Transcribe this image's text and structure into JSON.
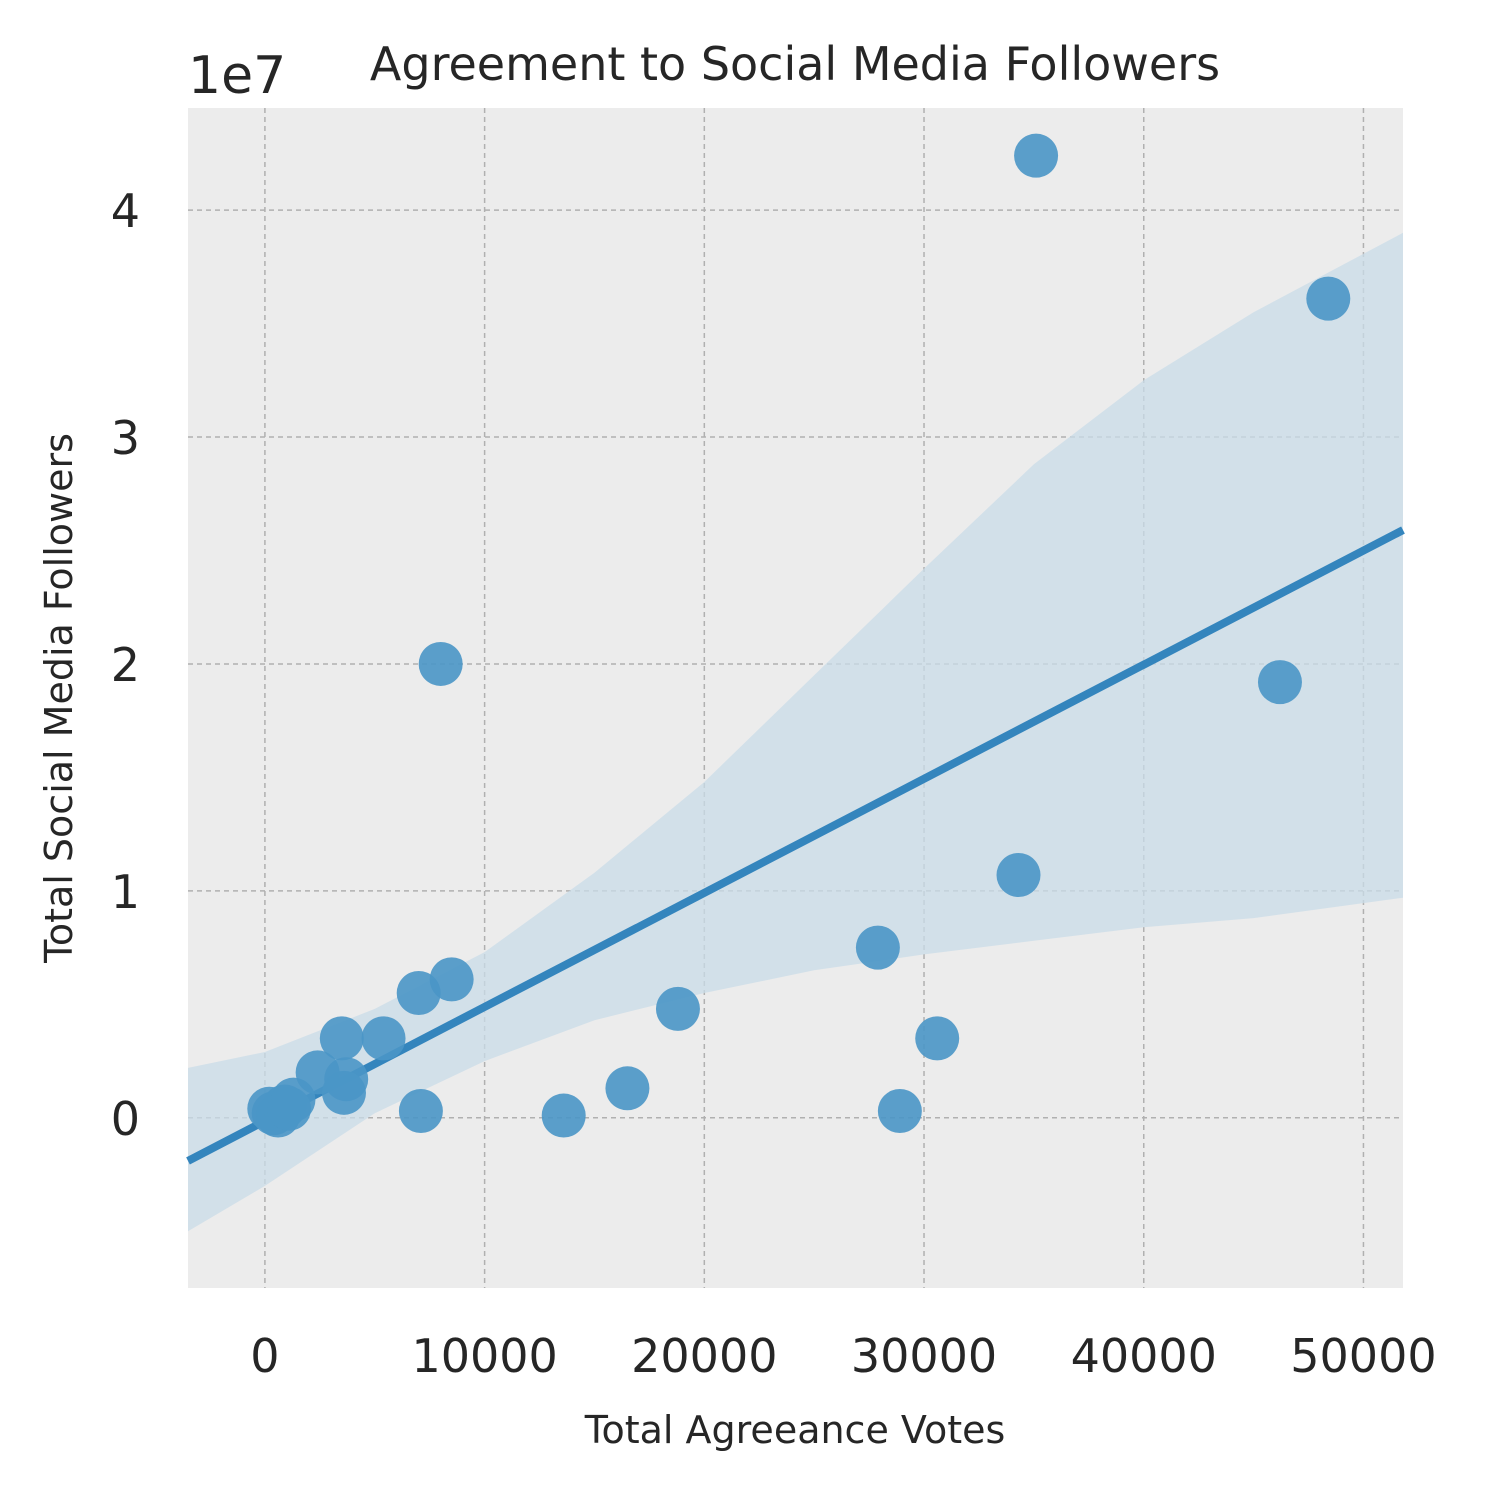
{
  "chart_data": {
    "type": "scatter",
    "title": "Agreement to Social Media Followers",
    "xlabel": "Total Agreeance Votes",
    "ylabel": "Total Social Media Followers",
    "y_offset_label": "1e7",
    "xlim": [
      -3500,
      51800
    ],
    "ylim": [
      -0.75,
      4.45
    ],
    "x_ticks": [
      0,
      10000,
      20000,
      30000,
      40000,
      50000
    ],
    "x_tick_labels": [
      "0",
      "10000",
      "20000",
      "30000",
      "40000",
      "50000"
    ],
    "y_ticks": [
      0,
      1,
      2,
      3,
      4
    ],
    "y_tick_labels": [
      "0",
      "1",
      "2",
      "3",
      "4"
    ],
    "y_scale_note": "y values in units of 1e7",
    "grid": true,
    "colors": {
      "points": "#4a96c6",
      "line": "#3485bd",
      "band": "#c9dce8",
      "background": "#ececec",
      "grid": "#b0b0b0"
    },
    "points": [
      {
        "x": 200,
        "y": 0.04
      },
      {
        "x": 400,
        "y": 0.02
      },
      {
        "x": 600,
        "y": 0.01
      },
      {
        "x": 900,
        "y": 0.05
      },
      {
        "x": 1100,
        "y": 0.04
      },
      {
        "x": 1300,
        "y": 0.08
      },
      {
        "x": 2400,
        "y": 0.2
      },
      {
        "x": 3500,
        "y": 0.35
      },
      {
        "x": 3600,
        "y": 0.11
      },
      {
        "x": 3700,
        "y": 0.17
      },
      {
        "x": 5400,
        "y": 0.35
      },
      {
        "x": 7000,
        "y": 0.55
      },
      {
        "x": 7100,
        "y": 0.03
      },
      {
        "x": 8000,
        "y": 2.0
      },
      {
        "x": 8500,
        "y": 0.61
      },
      {
        "x": 13600,
        "y": 0.01
      },
      {
        "x": 16500,
        "y": 0.13
      },
      {
        "x": 18800,
        "y": 0.48
      },
      {
        "x": 27900,
        "y": 0.75
      },
      {
        "x": 28900,
        "y": 0.03
      },
      {
        "x": 30600,
        "y": 0.35
      },
      {
        "x": 34300,
        "y": 1.07
      },
      {
        "x": 35100,
        "y": 4.24
      },
      {
        "x": 46200,
        "y": 1.92
      },
      {
        "x": 48400,
        "y": 3.61
      }
    ],
    "regression": {
      "x": [
        -3500,
        51800
      ],
      "y": [
        -0.19,
        2.59
      ]
    },
    "confidence_band": {
      "x": [
        -3500,
        0,
        5000,
        10000,
        15000,
        20000,
        25000,
        30000,
        35000,
        40000,
        45000,
        51800
      ],
      "upper": [
        0.22,
        0.29,
        0.48,
        0.73,
        1.08,
        1.48,
        1.95,
        2.42,
        2.88,
        3.25,
        3.55,
        3.9
      ],
      "lower": [
        -0.5,
        -0.3,
        0.02,
        0.25,
        0.43,
        0.55,
        0.65,
        0.72,
        0.78,
        0.84,
        0.88,
        0.97
      ]
    }
  }
}
